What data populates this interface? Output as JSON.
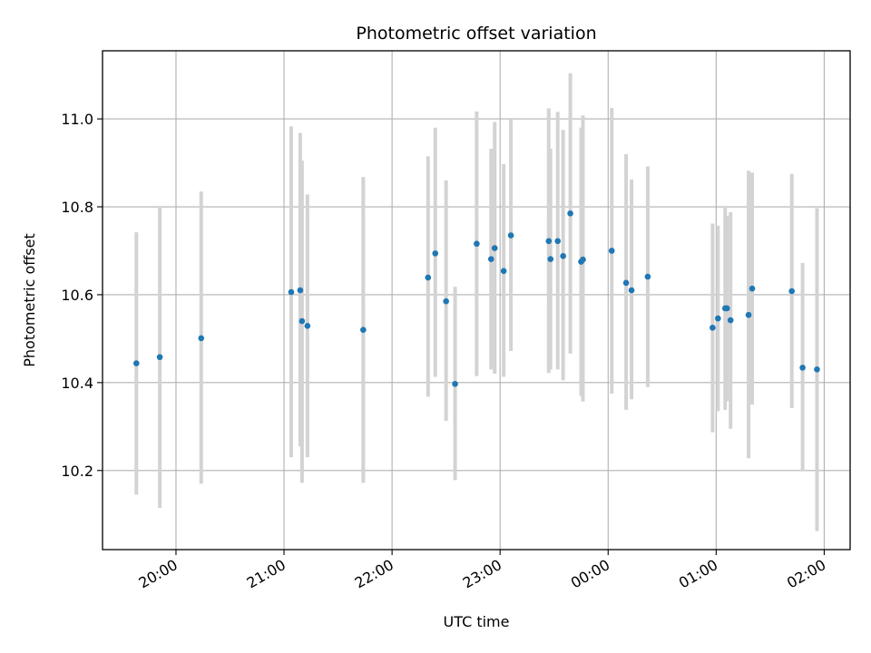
{
  "chart_data": {
    "type": "scatter",
    "title": "Photometric offset variation",
    "xlabel": "UTC time",
    "ylabel": "Photometric offset",
    "x_ticks": [
      "20:00",
      "21:00",
      "22:00",
      "23:00",
      "00:00",
      "01:00",
      "02:00"
    ],
    "x_tick_hours": [
      20,
      21,
      22,
      23,
      24,
      25,
      26
    ],
    "xlim_hours": [
      19.32,
      26.24
    ],
    "y_ticks": [
      "10.2",
      "10.4",
      "10.6",
      "10.8",
      "11.0"
    ],
    "y_tick_values": [
      10.2,
      10.4,
      10.6,
      10.8,
      11.0
    ],
    "ylim": [
      10.02,
      11.155
    ],
    "grid": true,
    "point_color": "#1f77b4",
    "errorbar_color": "#d3d3d3",
    "points": [
      {
        "time": "19:38",
        "y": 10.444,
        "lo": 10.145,
        "hi": 10.742
      },
      {
        "time": "19:51",
        "y": 10.458,
        "lo": 10.115,
        "hi": 10.8
      },
      {
        "time": "20:14",
        "y": 10.501,
        "lo": 10.17,
        "hi": 10.835
      },
      {
        "time": "21:04",
        "y": 10.606,
        "lo": 10.23,
        "hi": 10.983
      },
      {
        "time": "21:09",
        "y": 10.61,
        "lo": 10.255,
        "hi": 10.968
      },
      {
        "time": "21:10",
        "y": 10.54,
        "lo": 10.172,
        "hi": 10.905
      },
      {
        "time": "21:13",
        "y": 10.529,
        "lo": 10.23,
        "hi": 10.828
      },
      {
        "time": "21:44",
        "y": 10.52,
        "lo": 10.172,
        "hi": 10.868
      },
      {
        "time": "22:20",
        "y": 10.639,
        "lo": 10.368,
        "hi": 10.915
      },
      {
        "time": "22:24",
        "y": 10.694,
        "lo": 10.413,
        "hi": 10.98
      },
      {
        "time": "22:30",
        "y": 10.585,
        "lo": 10.313,
        "hi": 10.86
      },
      {
        "time": "22:35",
        "y": 10.397,
        "lo": 10.178,
        "hi": 10.618
      },
      {
        "time": "22:47",
        "y": 10.716,
        "lo": 10.415,
        "hi": 11.017
      },
      {
        "time": "22:55",
        "y": 10.681,
        "lo": 10.43,
        "hi": 10.932
      },
      {
        "time": "22:57",
        "y": 10.706,
        "lo": 10.42,
        "hi": 10.993
      },
      {
        "time": "23:02",
        "y": 10.654,
        "lo": 10.413,
        "hi": 10.897
      },
      {
        "time": "23:06",
        "y": 10.735,
        "lo": 10.472,
        "hi": 11.0
      },
      {
        "time": "23:27",
        "y": 10.722,
        "lo": 10.422,
        "hi": 11.024
      },
      {
        "time": "23:28",
        "y": 10.681,
        "lo": 10.43,
        "hi": 10.932
      },
      {
        "time": "23:32",
        "y": 10.722,
        "lo": 10.43,
        "hi": 11.016
      },
      {
        "time": "23:35",
        "y": 10.688,
        "lo": 10.405,
        "hi": 10.975
      },
      {
        "time": "23:39",
        "y": 10.785,
        "lo": 10.466,
        "hi": 11.104
      },
      {
        "time": "23:45",
        "y": 10.675,
        "lo": 10.37,
        "hi": 10.98
      },
      {
        "time": "23:46",
        "y": 10.68,
        "lo": 10.357,
        "hi": 11.008
      },
      {
        "time": "00:02",
        "y": 10.7,
        "lo": 10.375,
        "hi": 11.025
      },
      {
        "time": "00:10",
        "y": 10.627,
        "lo": 10.338,
        "hi": 10.92
      },
      {
        "time": "00:13",
        "y": 10.61,
        "lo": 10.362,
        "hi": 10.862
      },
      {
        "time": "00:22",
        "y": 10.641,
        "lo": 10.39,
        "hi": 10.892
      },
      {
        "time": "00:58",
        "y": 10.525,
        "lo": 10.287,
        "hi": 10.762
      },
      {
        "time": "01:01",
        "y": 10.546,
        "lo": 10.335,
        "hi": 10.757
      },
      {
        "time": "01:05",
        "y": 10.569,
        "lo": 10.338,
        "hi": 10.8
      },
      {
        "time": "01:06",
        "y": 10.569,
        "lo": 10.358,
        "hi": 10.78
      },
      {
        "time": "01:08",
        "y": 10.542,
        "lo": 10.295,
        "hi": 10.788
      },
      {
        "time": "01:18",
        "y": 10.554,
        "lo": 10.228,
        "hi": 10.882
      },
      {
        "time": "01:20",
        "y": 10.614,
        "lo": 10.35,
        "hi": 10.878
      },
      {
        "time": "01:42",
        "y": 10.608,
        "lo": 10.342,
        "hi": 10.875
      },
      {
        "time": "01:48",
        "y": 10.434,
        "lo": 10.198,
        "hi": 10.672
      },
      {
        "time": "01:56",
        "y": 10.43,
        "lo": 10.062,
        "hi": 10.797
      }
    ]
  }
}
